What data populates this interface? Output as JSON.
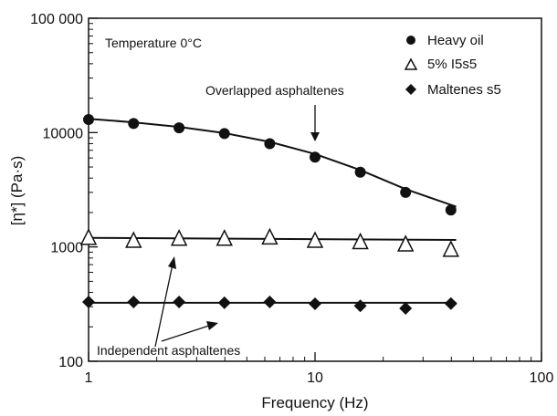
{
  "chart_data": {
    "type": "scatter",
    "xlabel": "Frequency (Hz)",
    "ylabel": "[η*] (Pa·s)",
    "x_scale": "log",
    "y_scale": "log",
    "xlim": [
      1,
      100
    ],
    "ylim": [
      100,
      100000
    ],
    "x_tick_labels": [
      "1",
      "10",
      "100"
    ],
    "y_tick_labels": [
      "100",
      "1000",
      "10000",
      "100 000"
    ],
    "grid": false,
    "legend_position": "top-right",
    "annotations": {
      "temperature": "Temperature 0°C",
      "overlapped": "Overlapped asphaltenes",
      "independent": "Independent asphaltenes"
    },
    "series": [
      {
        "name": "Heavy oil",
        "marker": "circle",
        "x": [
          1,
          1.58,
          2.51,
          3.98,
          6.31,
          10,
          15.85,
          25.12,
          39.81
        ],
        "y": [
          13000,
          12000,
          11000,
          9800,
          8000,
          6100,
          4500,
          3000,
          2100
        ],
        "fit_line": [
          {
            "x": 1,
            "y": 13200
          },
          {
            "x": 1.58,
            "y": 12300
          },
          {
            "x": 2.51,
            "y": 11200
          },
          {
            "x": 3.98,
            "y": 9900
          },
          {
            "x": 6.31,
            "y": 8300
          },
          {
            "x": 10,
            "y": 6500
          },
          {
            "x": 15.85,
            "y": 4700
          },
          {
            "x": 25.12,
            "y": 3200
          },
          {
            "x": 42,
            "y": 2250
          }
        ]
      },
      {
        "name": "5% I5s5",
        "marker": "triangle-open",
        "x": [
          1,
          1.58,
          2.51,
          3.98,
          6.31,
          10,
          15.85,
          25.12,
          39.81
        ],
        "y": [
          1220,
          1150,
          1200,
          1200,
          1230,
          1150,
          1120,
          1070,
          960
        ],
        "fit_line": [
          {
            "x": 1,
            "y": 1200
          },
          {
            "x": 42,
            "y": 1150
          }
        ]
      },
      {
        "name": "Maltenes s5",
        "marker": "diamond",
        "x": [
          1,
          1.58,
          2.51,
          3.98,
          6.31,
          10,
          15.85,
          25.12,
          39.81
        ],
        "y": [
          330,
          330,
          330,
          325,
          330,
          318,
          305,
          290,
          320
        ],
        "fit_line": [
          {
            "x": 1,
            "y": 325
          },
          {
            "x": 42,
            "y": 325
          }
        ]
      }
    ]
  }
}
